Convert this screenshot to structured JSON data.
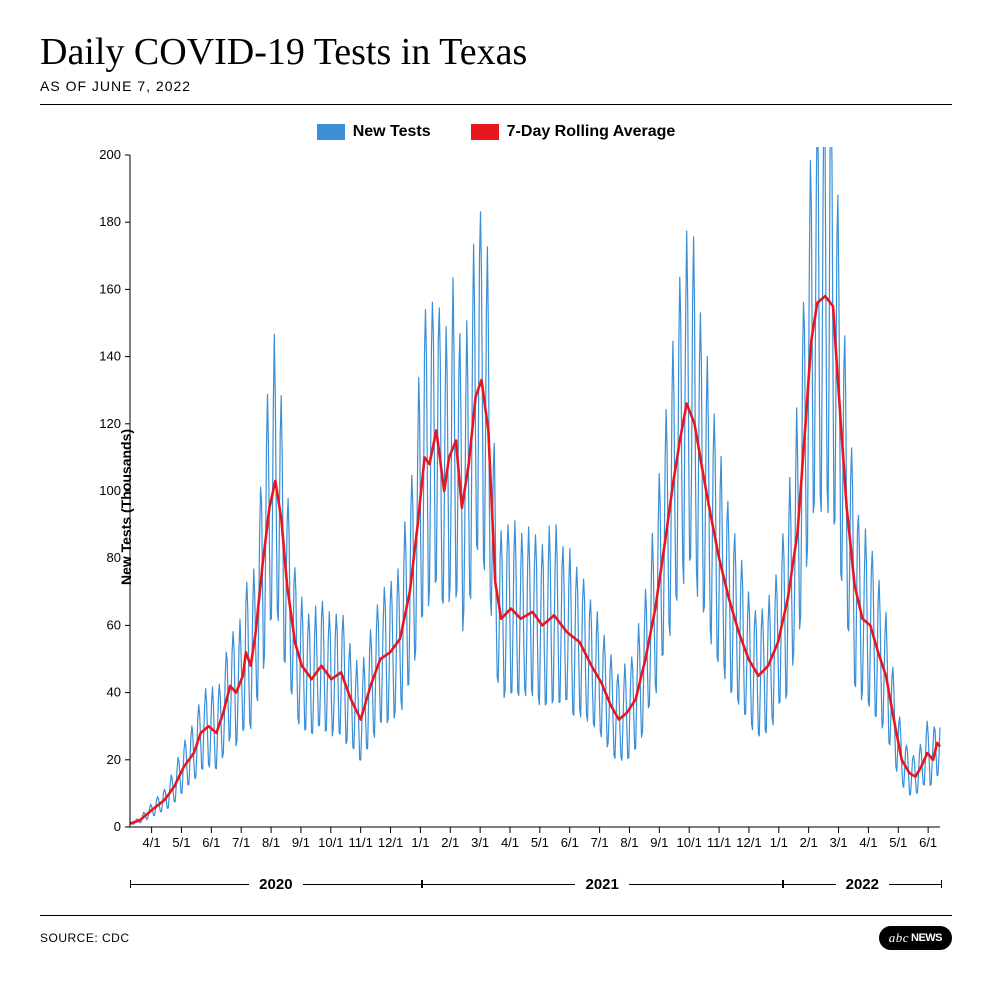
{
  "title": "Daily COVID-19 Tests in Texas",
  "subtitle": "AS OF JUNE 7, 2022",
  "ylabel": "New Tests (Thousands)",
  "legend": {
    "series1_label": "New Tests",
    "series2_label": "7-Day Rolling Average"
  },
  "source": "SOURCE: CDC",
  "logo_abc": "abc",
  "logo_news": "NEWS",
  "chart": {
    "type": "line",
    "colors": {
      "new_tests": "#3b8fd6",
      "rolling_avg": "#e8171f",
      "axis": "#000000",
      "background": "#ffffff"
    },
    "line_width_daily": 1.2,
    "line_width_avg": 2.6,
    "y_axis": {
      "min": 0,
      "max": 200,
      "tick_step": 20,
      "ticks": [
        0,
        20,
        40,
        60,
        80,
        100,
        120,
        140,
        160,
        180,
        200
      ]
    },
    "x_axis": {
      "start": "2020-03-10",
      "end": "2022-06-07",
      "month_ticks": [
        "4/1",
        "5/1",
        "6/1",
        "7/1",
        "8/1",
        "9/1",
        "10/1",
        "11/1",
        "12/1",
        "1/1",
        "2/1",
        "3/1",
        "4/1",
        "5/1",
        "6/1",
        "7/1",
        "8/1",
        "9/1",
        "10/1",
        "11/1",
        "12/1",
        "1/1",
        "2/1",
        "3/1",
        "4/1",
        "5/1",
        "6/1"
      ],
      "year_groups": [
        {
          "label": "2020",
          "span_months": 9.7
        },
        {
          "label": "2021",
          "span_months": 12
        },
        {
          "label": "2022",
          "span_months": 5.3
        }
      ]
    },
    "rolling_avg_keyframes": [
      [
        0,
        1
      ],
      [
        10,
        2
      ],
      [
        22,
        5
      ],
      [
        35,
        8
      ],
      [
        45,
        12
      ],
      [
        55,
        18
      ],
      [
        65,
        22
      ],
      [
        72,
        28
      ],
      [
        80,
        30
      ],
      [
        88,
        28
      ],
      [
        95,
        34
      ],
      [
        102,
        42
      ],
      [
        108,
        40
      ],
      [
        115,
        45
      ],
      [
        118,
        52
      ],
      [
        123,
        48
      ],
      [
        128,
        58
      ],
      [
        135,
        78
      ],
      [
        142,
        95
      ],
      [
        148,
        103
      ],
      [
        154,
        92
      ],
      [
        160,
        72
      ],
      [
        168,
        55
      ],
      [
        175,
        48
      ],
      [
        185,
        44
      ],
      [
        195,
        48
      ],
      [
        205,
        44
      ],
      [
        215,
        46
      ],
      [
        225,
        38
      ],
      [
        235,
        32
      ],
      [
        245,
        42
      ],
      [
        255,
        50
      ],
      [
        265,
        52
      ],
      [
        275,
        56
      ],
      [
        285,
        70
      ],
      [
        293,
        90
      ],
      [
        300,
        110
      ],
      [
        305,
        108
      ],
      [
        312,
        118
      ],
      [
        320,
        100
      ],
      [
        325,
        110
      ],
      [
        332,
        115
      ],
      [
        338,
        95
      ],
      [
        345,
        108
      ],
      [
        352,
        128
      ],
      [
        358,
        133
      ],
      [
        365,
        118
      ],
      [
        372,
        73
      ],
      [
        378,
        62
      ],
      [
        388,
        65
      ],
      [
        398,
        62
      ],
      [
        410,
        64
      ],
      [
        420,
        60
      ],
      [
        432,
        63
      ],
      [
        445,
        58
      ],
      [
        458,
        55
      ],
      [
        470,
        48
      ],
      [
        480,
        43
      ],
      [
        490,
        36
      ],
      [
        498,
        32
      ],
      [
        506,
        34
      ],
      [
        515,
        38
      ],
      [
        525,
        50
      ],
      [
        535,
        65
      ],
      [
        545,
        85
      ],
      [
        553,
        102
      ],
      [
        560,
        115
      ],
      [
        567,
        126
      ],
      [
        575,
        120
      ],
      [
        582,
        108
      ],
      [
        590,
        95
      ],
      [
        600,
        80
      ],
      [
        610,
        68
      ],
      [
        620,
        58
      ],
      [
        630,
        50
      ],
      [
        640,
        45
      ],
      [
        650,
        48
      ],
      [
        660,
        55
      ],
      [
        670,
        68
      ],
      [
        680,
        88
      ],
      [
        688,
        120
      ],
      [
        694,
        145
      ],
      [
        700,
        156
      ],
      [
        708,
        158
      ],
      [
        716,
        155
      ],
      [
        724,
        120
      ],
      [
        730,
        95
      ],
      [
        738,
        72
      ],
      [
        746,
        62
      ],
      [
        754,
        60
      ],
      [
        762,
        52
      ],
      [
        770,
        45
      ],
      [
        778,
        32
      ],
      [
        786,
        20
      ],
      [
        794,
        16
      ],
      [
        800,
        15
      ],
      [
        806,
        18
      ],
      [
        812,
        22
      ],
      [
        818,
        20
      ],
      [
        822,
        25
      ],
      [
        825,
        24
      ]
    ],
    "daily_noise_amplitude": 0.42,
    "daily_noise_clamp_min": 0,
    "total_days": 825
  }
}
